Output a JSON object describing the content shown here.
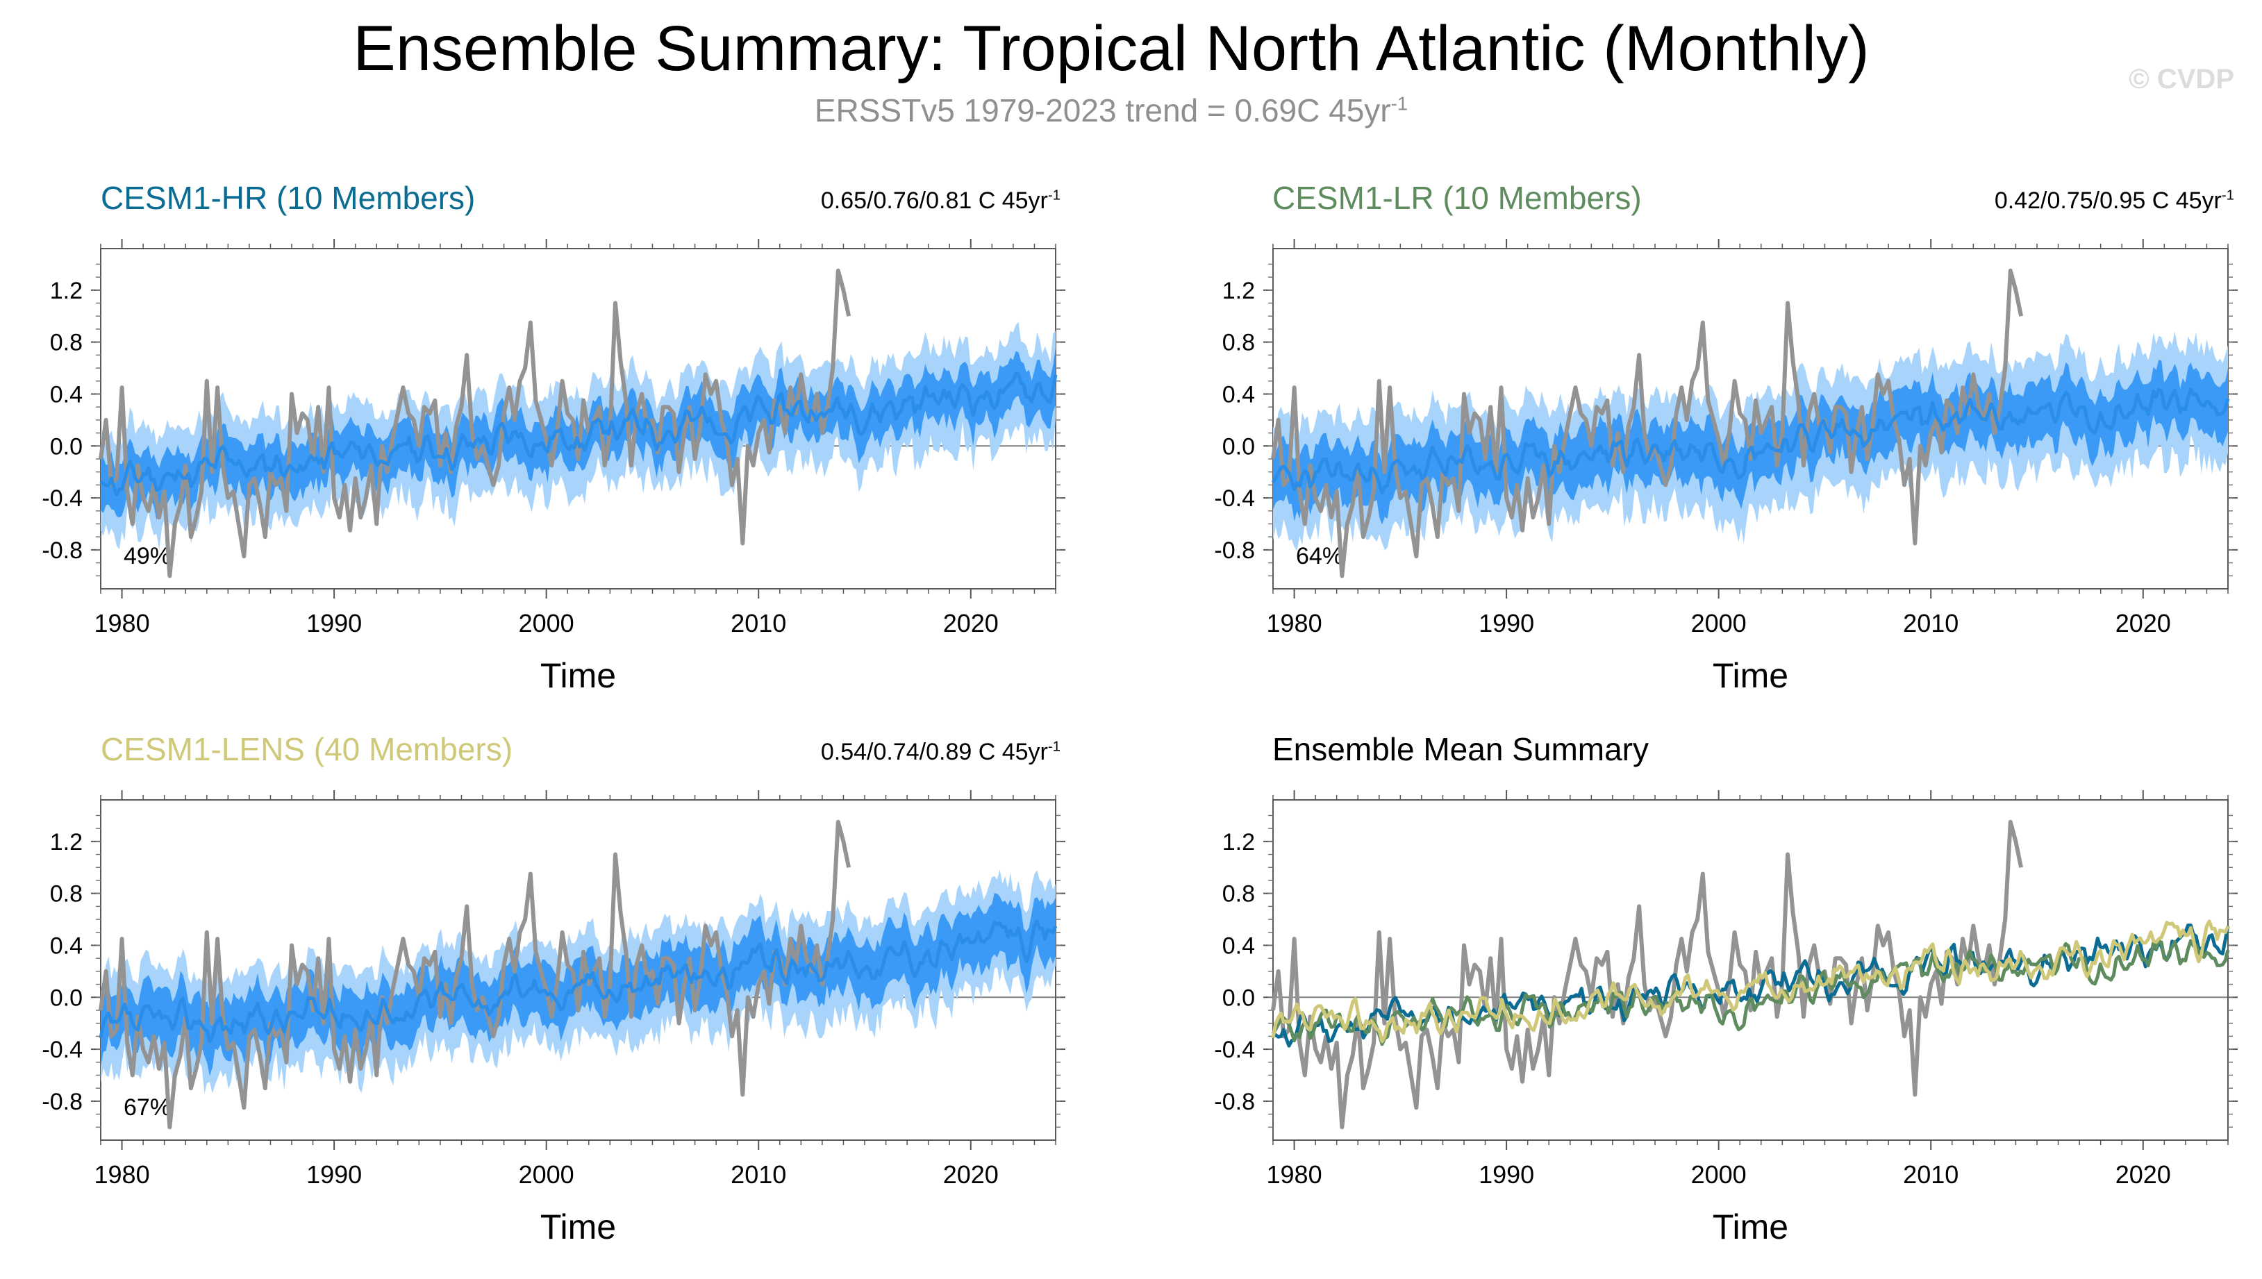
{
  "title": "Ensemble Summary: Tropical North Atlantic (Monthly)",
  "subtitle_main": "ERSSTv5 1979-2023 trend = 0.69C 45yr",
  "subtitle_sup": "-1",
  "watermark": "© CVDP",
  "colors": {
    "observations": "#939393",
    "ensemble_mean": "#2a8de8",
    "spread_inner": "#3b9af5",
    "spread_outer": "#a8d4fb",
    "cesm1_hr": "#0a6b93",
    "cesm1_lr": "#5e8c5e",
    "cesm1_lens": "#cfc878",
    "zero_line": "#808080"
  },
  "chart_data": [
    {
      "type": "line",
      "id": "hr",
      "title": "CESM1-HR (10 Members)",
      "title_color": "#0a6b93",
      "trend_text": "0.65/0.76/0.81 C 45yr",
      "trend_sup": "-1",
      "percent_label": "49%",
      "xlabel": "Time",
      "ylabel": "",
      "xlim": [
        1979,
        2024
      ],
      "ylim": [
        -1.1,
        1.52
      ],
      "xticks": [
        1980,
        1990,
        2000,
        2010,
        2020
      ],
      "yticks": [
        1.2,
        0.8,
        0.4,
        0.0,
        -0.4,
        -0.8
      ],
      "ytick_labels": [
        "1.2",
        "0.8",
        "0.4",
        "0.0",
        "-0.4",
        "-0.8"
      ],
      "trend_start": -0.28,
      "trend_end": 0.46,
      "spread_outer": 0.34,
      "spread_inner": 0.17,
      "seed": 11,
      "series": [
        {
          "name": "ERSSTv5 observations",
          "values_ref": "observations"
        },
        {
          "name": "ensemble mean",
          "values_ref": "generated"
        }
      ]
    },
    {
      "type": "line",
      "id": "lr",
      "title": "CESM1-LR (10 Members)",
      "title_color": "#5e8c5e",
      "trend_text": "0.42/0.75/0.95 C 45yr",
      "trend_sup": "-1",
      "percent_label": "64%",
      "xlabel": "Time",
      "ylabel": "",
      "xlim": [
        1979,
        2024
      ],
      "ylim": [
        -1.1,
        1.52
      ],
      "xticks": [
        1980,
        1990,
        2000,
        2010,
        2020
      ],
      "yticks": [
        1.2,
        0.8,
        0.4,
        0.0,
        -0.4,
        -0.8
      ],
      "ytick_labels": [
        "1.2",
        "0.8",
        "0.4",
        "0.0",
        "-0.4",
        "-0.8"
      ],
      "trend_start": -0.3,
      "trend_end": 0.38,
      "spread_outer": 0.4,
      "spread_inner": 0.2,
      "seed": 23,
      "series": [
        {
          "name": "ERSSTv5 observations",
          "values_ref": "observations"
        },
        {
          "name": "ensemble mean",
          "values_ref": "generated"
        }
      ]
    },
    {
      "type": "line",
      "id": "lens",
      "title": "CESM1-LENS (40 Members)",
      "title_color": "#cfc878",
      "trend_text": "0.54/0.74/0.89 C 45yr",
      "trend_sup": "-1",
      "percent_label": "67%",
      "xlabel": "Time",
      "ylabel": "",
      "xlim": [
        1979,
        2024
      ],
      "ylim": [
        -1.1,
        1.52
      ],
      "xticks": [
        1980,
        1990,
        2000,
        2010,
        2020
      ],
      "yticks": [
        1.2,
        0.8,
        0.4,
        0.0,
        -0.4,
        -0.8
      ],
      "ytick_labels": [
        "1.2",
        "0.8",
        "0.4",
        "0.0",
        "-0.4",
        "-0.8"
      ],
      "trend_start": -0.3,
      "trend_end": 0.46,
      "spread_outer": 0.36,
      "spread_inner": 0.2,
      "seed": 37,
      "series": [
        {
          "name": "ERSSTv5 observations",
          "values_ref": "observations"
        },
        {
          "name": "ensemble mean",
          "values_ref": "generated"
        }
      ]
    },
    {
      "type": "line",
      "id": "summary",
      "title": "Ensemble Mean Summary",
      "title_color": "#000000",
      "xlabel": "Time",
      "ylabel": "",
      "xlim": [
        1979,
        2024
      ],
      "ylim": [
        -1.1,
        1.52
      ],
      "xticks": [
        1980,
        1990,
        2000,
        2010,
        2020
      ],
      "yticks": [
        1.2,
        0.8,
        0.4,
        0.0,
        -0.4,
        -0.8
      ],
      "ytick_labels": [
        "1.2",
        "0.8",
        "0.4",
        "0.0",
        "-0.4",
        "-0.8"
      ],
      "series": [
        {
          "name": "ERSSTv5 observations",
          "color": "#939393"
        },
        {
          "name": "CESM1-HR ensemble mean",
          "color": "#0a6b93",
          "trend_start": -0.28,
          "trend_end": 0.46,
          "seed": 11
        },
        {
          "name": "CESM1-LR ensemble mean",
          "color": "#5e8c5e",
          "trend_start": -0.3,
          "trend_end": 0.38,
          "seed": 23
        },
        {
          "name": "CESM1-LENS ensemble mean",
          "color": "#cfc878",
          "trend_start": -0.3,
          "trend_end": 0.46,
          "seed": 37
        }
      ]
    }
  ],
  "observations": {
    "name": "ERSSTv5",
    "start_year": 1979,
    "step_years": 0.25,
    "values": [
      -0.1,
      0.2,
      -0.3,
      -0.25,
      0.45,
      -0.35,
      -0.6,
      -0.15,
      -0.4,
      -0.5,
      -0.3,
      -0.55,
      -0.35,
      -1.0,
      -0.6,
      -0.45,
      -0.15,
      -0.7,
      -0.55,
      -0.35,
      0.5,
      -0.2,
      0.45,
      -0.15,
      -0.4,
      -0.35,
      -0.6,
      -0.85,
      -0.3,
      -0.25,
      -0.45,
      -0.7,
      -0.2,
      -0.3,
      -0.25,
      -0.5,
      0.4,
      0.1,
      0.25,
      0.2,
      -0.1,
      0.3,
      -0.2,
      0.45,
      -0.4,
      -0.55,
      -0.3,
      -0.65,
      -0.25,
      -0.55,
      -0.4,
      -0.15,
      -0.6,
      0.0,
      -0.2,
      0.05,
      0.25,
      0.45,
      0.25,
      0.2,
      0.0,
      0.3,
      0.25,
      0.35,
      -0.15,
      0.1,
      -0.2,
      0.15,
      0.3,
      0.7,
      0.1,
      -0.1,
      0.0,
      -0.15,
      -0.3,
      -0.15,
      0.25,
      0.45,
      0.2,
      0.5,
      0.6,
      0.95,
      0.35,
      0.2,
      0.05,
      -0.15,
      0.1,
      0.5,
      0.25,
      0.2,
      -0.1,
      0.35,
      0.1,
      0.2,
      0.3,
      -0.15,
      0.1,
      1.1,
      0.65,
      0.35,
      -0.15,
      0.25,
      0.4,
      0.15,
      0.2,
      -0.05,
      0.3,
      0.3,
      0.25,
      -0.2,
      0.1,
      0.3,
      -0.1,
      0.15,
      0.55,
      0.4,
      0.5,
      0.2,
      0.05,
      -0.3,
      -0.1,
      -0.75,
      0.0,
      -0.15,
      0.1,
      0.2,
      -0.05,
      0.35,
      0.3,
      0.1,
      0.45,
      0.25,
      0.55,
      0.3,
      0.2,
      0.4,
      0.1,
      0.3,
      0.6,
      1.35,
      1.2,
      1.0
    ]
  }
}
